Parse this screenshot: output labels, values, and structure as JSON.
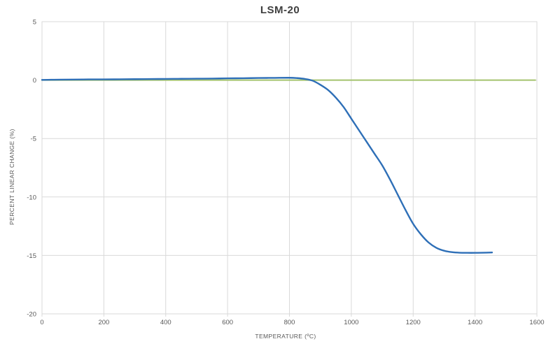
{
  "title": "LSM-20",
  "colors": {
    "background": "#ffffff",
    "grid": "#d9d9d9",
    "border": "#d9d9d9",
    "tick_text": "#595959",
    "axis_label_text": "#595959",
    "title_text": "#3f3f3f",
    "series_blue": "#2e6fb7",
    "series_green": "#a4c36e"
  },
  "chart_data": {
    "type": "line",
    "title": "LSM-20",
    "xlabel": "TEMPERATURE (ºC)",
    "ylabel": "PERCENT LINEAR CHANGE (%)",
    "xlim": [
      0,
      1600
    ],
    "ylim": [
      -20,
      5
    ],
    "x_ticks": [
      0,
      200,
      400,
      600,
      800,
      1000,
      1200,
      1400,
      1600
    ],
    "y_ticks": [
      5,
      0,
      -5,
      -10,
      -15,
      -20
    ],
    "grid": true,
    "legend": "none",
    "series": [
      {
        "name": "LSM-20 percent linear change",
        "color": "#2e6fb7",
        "width": 2.4,
        "smooth": true,
        "points": [
          [
            0,
            0.02
          ],
          [
            30,
            0.03
          ],
          [
            60,
            0.04
          ],
          [
            100,
            0.05
          ],
          [
            150,
            0.06
          ],
          [
            200,
            0.06
          ],
          [
            250,
            0.07
          ],
          [
            300,
            0.08
          ],
          [
            350,
            0.09
          ],
          [
            400,
            0.1
          ],
          [
            450,
            0.11
          ],
          [
            500,
            0.12
          ],
          [
            550,
            0.13
          ],
          [
            600,
            0.15
          ],
          [
            650,
            0.16
          ],
          [
            700,
            0.18
          ],
          [
            750,
            0.19
          ],
          [
            800,
            0.2
          ],
          [
            825,
            0.17
          ],
          [
            850,
            0.1
          ],
          [
            875,
            -0.05
          ],
          [
            900,
            -0.4
          ],
          [
            925,
            -0.85
          ],
          [
            950,
            -1.5
          ],
          [
            975,
            -2.3
          ],
          [
            1000,
            -3.3
          ],
          [
            1025,
            -4.3
          ],
          [
            1050,
            -5.3
          ],
          [
            1075,
            -6.3
          ],
          [
            1100,
            -7.3
          ],
          [
            1125,
            -8.5
          ],
          [
            1150,
            -9.8
          ],
          [
            1175,
            -11.1
          ],
          [
            1200,
            -12.3
          ],
          [
            1225,
            -13.2
          ],
          [
            1250,
            -13.9
          ],
          [
            1275,
            -14.35
          ],
          [
            1300,
            -14.6
          ],
          [
            1325,
            -14.72
          ],
          [
            1350,
            -14.77
          ],
          [
            1375,
            -14.78
          ],
          [
            1400,
            -14.78
          ],
          [
            1425,
            -14.77
          ],
          [
            1455,
            -14.75
          ]
        ]
      },
      {
        "name": "zero reference baseline",
        "color": "#a4c36e",
        "width": 2,
        "smooth": false,
        "points": [
          [
            0,
            0
          ],
          [
            1595,
            0
          ]
        ]
      }
    ]
  }
}
